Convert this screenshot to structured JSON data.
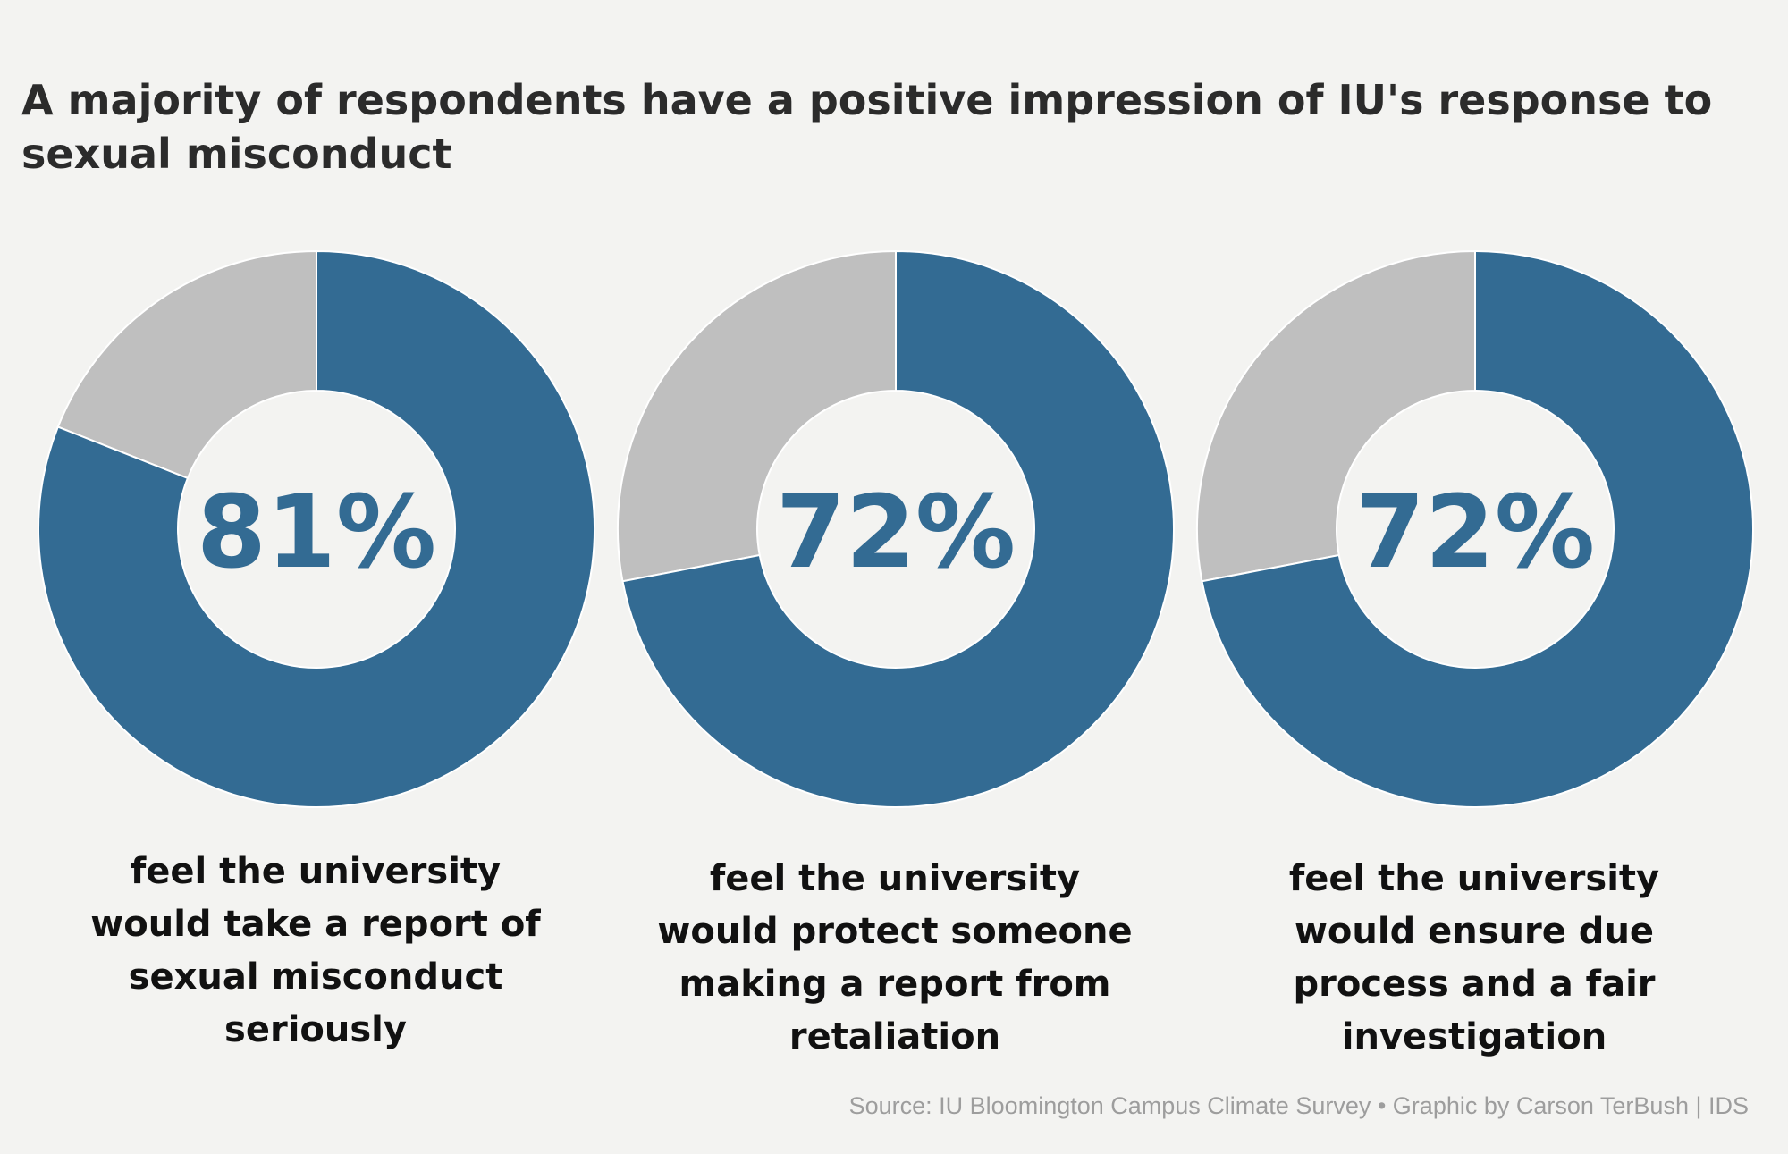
{
  "colors": {
    "background": "#f3f3f1",
    "primary": "#336b93",
    "remainder": "#bfbfbf",
    "title": "#2b2b2b",
    "caption": "#111111",
    "source": "#9d9d9d"
  },
  "chart_data": {
    "type": "pie",
    "title": "A majority of respondents have a positive impression of IU's response to sexual misconduct",
    "source": "Source: IU Bloomington Campus Climate Survey • Graphic by Carson TerBush | IDS",
    "charts": [
      {
        "value": 81,
        "label": "81%",
        "caption": "feel the university would take a report of sexual misconduct seriously"
      },
      {
        "value": 72,
        "label": "72%",
        "caption": "feel the university would protect someone making a report from retaliation"
      },
      {
        "value": 72,
        "label": "72%",
        "caption": "feel the university would ensure due process and a fair investigation"
      }
    ]
  }
}
